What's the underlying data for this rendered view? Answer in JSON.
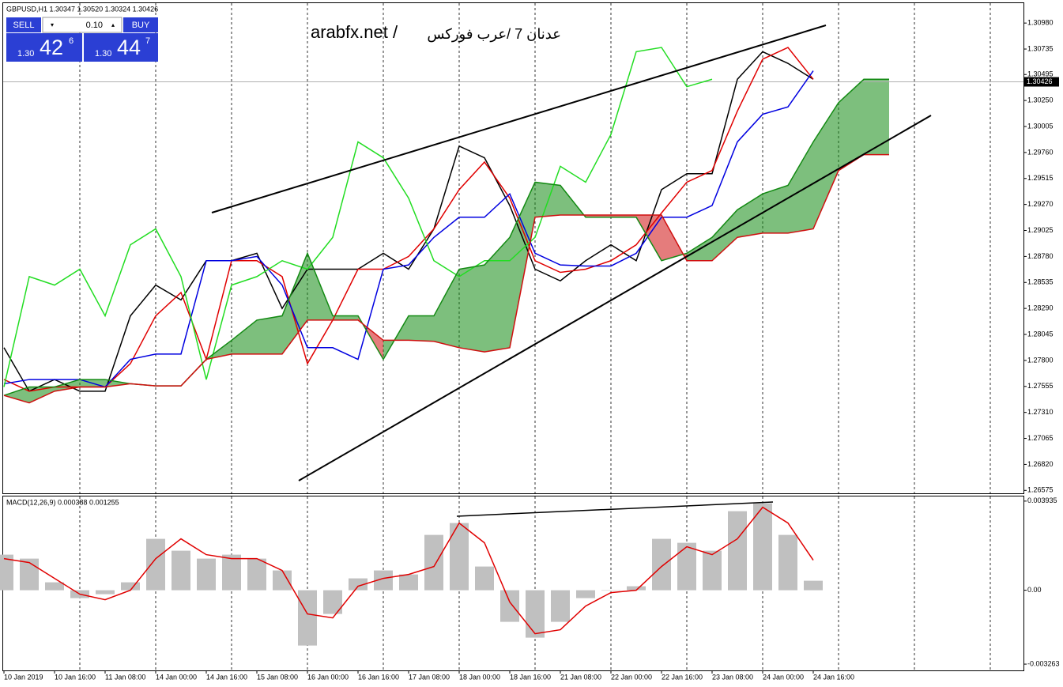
{
  "header": {
    "title": "GBPUSD,H1  1.30347 1.30520 1.30324 1.30426"
  },
  "trade_panel": {
    "sell": "SELL",
    "buy": "BUY",
    "lot": "0.10",
    "sell_big": "1.30",
    "sell_main": "42",
    "sell_frac": "6",
    "buy_big": "1.30",
    "buy_main": "44",
    "buy_frac": "7"
  },
  "chart_data": [
    {
      "type": "line",
      "annotations": [
        "arabfx.net /",
        "عدنان 7  /عرب فوركس"
      ],
      "current_price": 1.30426,
      "ichimoku_cloud": true,
      "categories": [
        "10 Jan 2019",
        null,
        "10 Jan 16:00",
        null,
        "11 Jan 08:00",
        null,
        "14 Jan 00:00",
        null,
        "14 Jan 16:00",
        null,
        "15 Jan 08:00",
        null,
        "16 Jan 00:00",
        null,
        "16 Jan 16:00",
        null,
        "17 Jan 08:00",
        null,
        "18 Jan 00:00",
        null,
        "18 Jan 16:00",
        null,
        "21 Jan 08:00",
        null,
        "22 Jan 00:00",
        null,
        "22 Jan 16:00",
        null,
        "23 Jan 08:00",
        null,
        "24 Jan 00:00",
        null,
        "24 Jan 16:00",
        null,
        null,
        null,
        null,
        null,
        null,
        null,
        null
      ],
      "ylim": [
        1.2654,
        1.3116
      ],
      "yticks": [
        {
          "value": 1.3098,
          "label": "1.30980"
        },
        1.30735,
        1.30495,
        {
          "value": 1.3025,
          "label": "1.30250"
        },
        1.30005,
        {
          "value": 1.2976,
          "label": "1.29760"
        },
        1.29515,
        {
          "value": 1.2927,
          "label": "1.29270"
        },
        1.29025,
        {
          "value": 1.2878,
          "label": "1.28780"
        },
        1.28535,
        {
          "value": 1.2829,
          "label": "1.28290"
        },
        1.28045,
        {
          "value": 1.278,
          "label": "1.27800"
        },
        1.27555,
        {
          "value": 1.2731,
          "label": "1.27310"
        },
        1.27065,
        {
          "value": 1.2682,
          "label": "1.26820"
        },
        1.26575
      ],
      "series": [
        {
          "color": "#000000",
          "values": [
            1.2792,
            1.2751,
            1.2762,
            1.2751,
            1.2751,
            1.2822,
            1.2851,
            1.2837,
            1.2874,
            1.2874,
            1.2881,
            1.2829,
            1.2866,
            1.2866,
            1.2866,
            1.2881,
            1.2866,
            1.2904,
            1.2982,
            1.2971,
            1.2926,
            1.2866,
            1.2855,
            1.2874,
            1.2889,
            1.2874,
            1.2941,
            1.2956,
            1.2956,
            1.3045,
            1.3071,
            1.306,
            1.3045,
            null,
            null,
            null,
            null,
            null,
            null,
            null,
            null
          ]
        },
        {
          "color": "#e00000",
          "values": [
            1.2762,
            1.2751,
            1.2755,
            1.2755,
            1.2755,
            1.2777,
            1.2822,
            1.2844,
            1.2781,
            1.2874,
            1.2874,
            1.2859,
            1.2777,
            1.2818,
            1.2866,
            1.2866,
            1.2878,
            1.2904,
            1.2941,
            1.2967,
            1.2933,
            1.2874,
            1.2863,
            1.2866,
            1.2874,
            1.2889,
            1.2919,
            1.2948,
            1.2959,
            1.3015,
            1.3064,
            1.3075,
            1.3045,
            null,
            null,
            null,
            null,
            null,
            null,
            null,
            null
          ]
        },
        {
          "color": "#0000e0",
          "values": [
            1.2758,
            1.2762,
            1.2762,
            1.2762,
            1.2755,
            1.2781,
            1.2786,
            1.2786,
            1.2874,
            1.2874,
            1.2878,
            1.2851,
            1.2792,
            1.2792,
            1.2781,
            1.2866,
            1.287,
            1.2896,
            1.2915,
            1.2915,
            1.2937,
            1.2881,
            1.287,
            1.2869,
            1.2869,
            1.2881,
            1.2915,
            1.2915,
            1.2926,
            1.2986,
            1.3012,
            1.3019,
            1.3053,
            null,
            null,
            null,
            null,
            null,
            null,
            null,
            null
          ]
        },
        {
          "color": "#22dd22",
          "values": [
            1.2755,
            1.2859,
            1.2851,
            1.2866,
            1.2822,
            1.2889,
            1.2904,
            1.2859,
            1.2762,
            1.2851,
            1.2859,
            1.2874,
            1.2866,
            1.2896,
            1.2986,
            1.2971,
            1.2933,
            1.2874,
            1.2859,
            1.2874,
            1.2874,
            1.2896,
            1.2963,
            1.2948,
            1.2993,
            1.3071,
            1.3075,
            1.3038,
            1.3045,
            null,
            null,
            null,
            null,
            null,
            null,
            null,
            null,
            null,
            null,
            null,
            null
          ]
        },
        {
          "color": "#138a13",
          "values": [
            1.2747,
            1.2755,
            1.2755,
            1.2762,
            1.2762,
            1.2758,
            1.2756,
            1.2756,
            1.2781,
            1.2799,
            1.2818,
            1.2822,
            1.2881,
            1.2822,
            1.2822,
            1.2781,
            1.2822,
            1.2822,
            1.2866,
            1.287,
            1.2896,
            1.2948,
            1.2945,
            1.2915,
            1.2915,
            1.2915,
            1.2874,
            1.2881,
            1.2896,
            1.2922,
            1.2937,
            1.2945,
            1.2986,
            1.3023,
            1.3045,
            1.3045,
            null,
            null,
            null,
            null,
            null
          ]
        },
        {
          "color": "#d01010",
          "values": [
            1.2747,
            1.274,
            1.2751,
            1.2755,
            1.2755,
            1.2758,
            1.2756,
            1.2756,
            1.2781,
            1.2786,
            1.2786,
            1.2786,
            1.2818,
            1.2818,
            1.2818,
            1.2799,
            1.2799,
            1.2798,
            1.2792,
            1.2788,
            1.2792,
            1.2915,
            1.2917,
            1.2917,
            1.2917,
            1.2917,
            1.2917,
            1.2874,
            1.2874,
            1.2896,
            1.29,
            1.29,
            1.2904,
            1.2959,
            1.2974,
            1.2974,
            null,
            null,
            null,
            null,
            null
          ]
        }
      ]
    },
    {
      "type": "bar",
      "title": "MACD(12,26,9) 0.000388 0.001255",
      "ylim": [
        -0.00354,
        0.00407
      ],
      "yticks": [
        0.003935,
        {
          "value": 0,
          "label": "0.00"
        },
        -0.003263
      ],
      "series": [
        {
          "color": "#c0c0c0",
          "type": "bar",
          "values": [
            0.001571,
            0.001396,
            0.000349,
            -0.000349,
            -0.000175,
            0.000349,
            0.002269,
            0.001745,
            0.001396,
            0.001571,
            0.001396,
            0.000873,
            -0.002443,
            -0.001047,
            0.000524,
            0.000873,
            0.000698,
            0.002443,
            0.002967,
            0.001047,
            -0.001396,
            -0.002094,
            -0.001396,
            -0.000349,
            0,
            0.000175,
            0.002269,
            0.002094,
            0.001745,
            0.00349,
            0.003839,
            0.002443,
            0.000419,
            null,
            null,
            null,
            null,
            null,
            null,
            null,
            null
          ]
        },
        {
          "color": "#e00000",
          "type": "line",
          "values": [
            0.001396,
            0.001222,
            0.000524,
            -0.000175,
            -0.000419,
            0,
            0.001396,
            0.002269,
            0.001571,
            0.001396,
            0.001396,
            0.000873,
            -0.001047,
            -0.001222,
            0.000175,
            0.000524,
            0.000698,
            0.001047,
            0.002967,
            0.002094,
            -0.000524,
            -0.00192,
            -0.001745,
            -0.000698,
            -0.000105,
            0,
            0.001047,
            0.00192,
            0.001571,
            0.002269,
            0.003665,
            0.002967,
            0.001326,
            null,
            null,
            null,
            null,
            null,
            null,
            null,
            null
          ]
        }
      ]
    }
  ]
}
